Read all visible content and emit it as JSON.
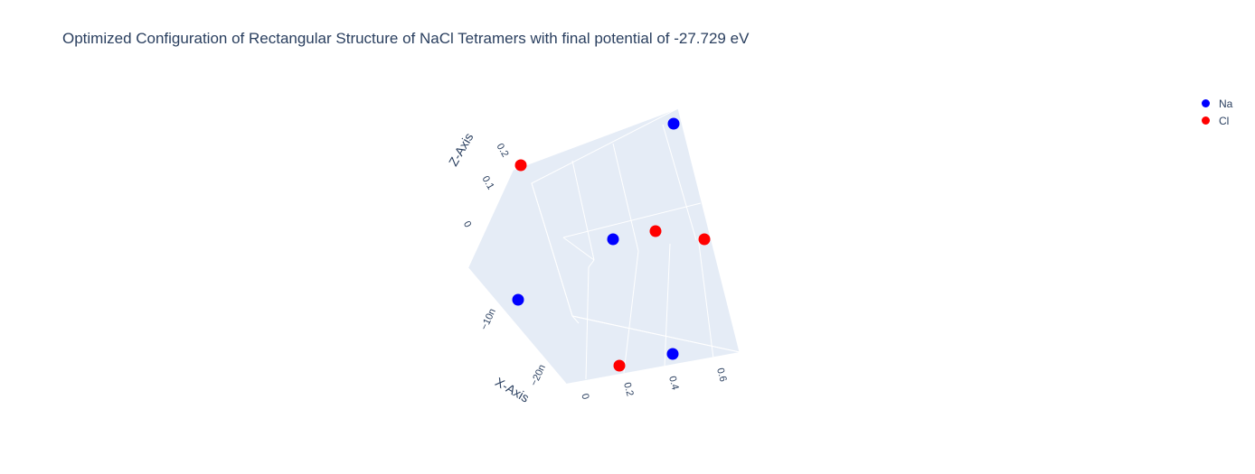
{
  "title": "Optimized Configuration of Rectangular Structure of NaCl Tetramers with final potential of -27.729 eV",
  "chart_data": {
    "type": "scatter3d",
    "title": "Optimized Configuration of Rectangular Structure of NaCl Tetramers with final potential of -27.729 eV",
    "axes": {
      "x": {
        "title": "X-Axis",
        "ticks": [
          "0",
          "0.2",
          "0.4",
          "0.6"
        ]
      },
      "y": {
        "title": "",
        "ticks": [
          "−20n",
          "−10n"
        ]
      },
      "z": {
        "title": "Z-Axis",
        "ticks": [
          "0",
          "0.1",
          "0.2"
        ]
      }
    },
    "series": [
      {
        "name": "Na",
        "color": "#0000ff",
        "marker": "circle",
        "points": 4
      },
      {
        "name": "Cl",
        "color": "#ff0000",
        "marker": "circle",
        "points": 4
      }
    ],
    "legend_position": "top-right",
    "scene_background": "#e5ecf6",
    "grid_color": "#ffffff"
  }
}
